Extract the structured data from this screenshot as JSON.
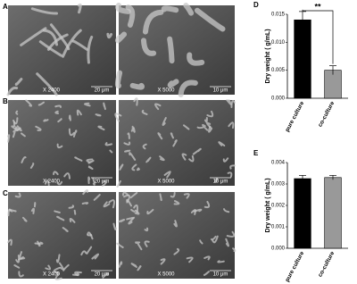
{
  "panels": [
    {
      "label": "A",
      "images": [
        {
          "magnification": "X 2400",
          "scale": "20 μm"
        },
        {
          "magnification": "X 5000",
          "scale": "10 μm"
        }
      ]
    },
    {
      "label": "B",
      "images": [
        {
          "magnification": "X 2400",
          "scale": "20 μm"
        },
        {
          "magnification": "X 5000",
          "scale": "10 μm"
        }
      ]
    },
    {
      "label": "C",
      "images": [
        {
          "magnification": "X 2400",
          "scale": "20 μm"
        },
        {
          "magnification": "X 5000",
          "scale": "10 μm"
        }
      ]
    }
  ],
  "chart_data": [
    {
      "type": "bar",
      "panel_label": "D",
      "ylabel": "Dry weight ( g/mL)",
      "categories": [
        "pure culture",
        "co-culture"
      ],
      "values": [
        0.014,
        0.005
      ],
      "errors": [
        0.0015,
        0.0008
      ],
      "colors": [
        "#000000",
        "#999999"
      ],
      "annotation": "**",
      "ylim": [
        0,
        0.015
      ],
      "yticks": [
        {
          "value": 0,
          "label": "0.000"
        },
        {
          "value": 0.005,
          "label": "0.005"
        },
        {
          "value": 0.01,
          "label": "0.010"
        },
        {
          "value": 0.015,
          "label": "0.015"
        }
      ]
    },
    {
      "type": "bar",
      "panel_label": "E",
      "ylabel": "Dry weight ( g/mL)",
      "categories": [
        "pure culture",
        "co-culture"
      ],
      "values": [
        0.00325,
        0.0033
      ],
      "errors": [
        0.00015,
        0.0001
      ],
      "colors": [
        "#000000",
        "#999999"
      ],
      "ylim": [
        0,
        0.004
      ],
      "yticks": [
        {
          "value": 0,
          "label": "0.000"
        },
        {
          "value": 0.001,
          "label": "0.001"
        },
        {
          "value": 0.002,
          "label": "0.002"
        },
        {
          "value": 0.003,
          "label": "0.003"
        },
        {
          "value": 0.004,
          "label": "0.004"
        }
      ]
    }
  ]
}
